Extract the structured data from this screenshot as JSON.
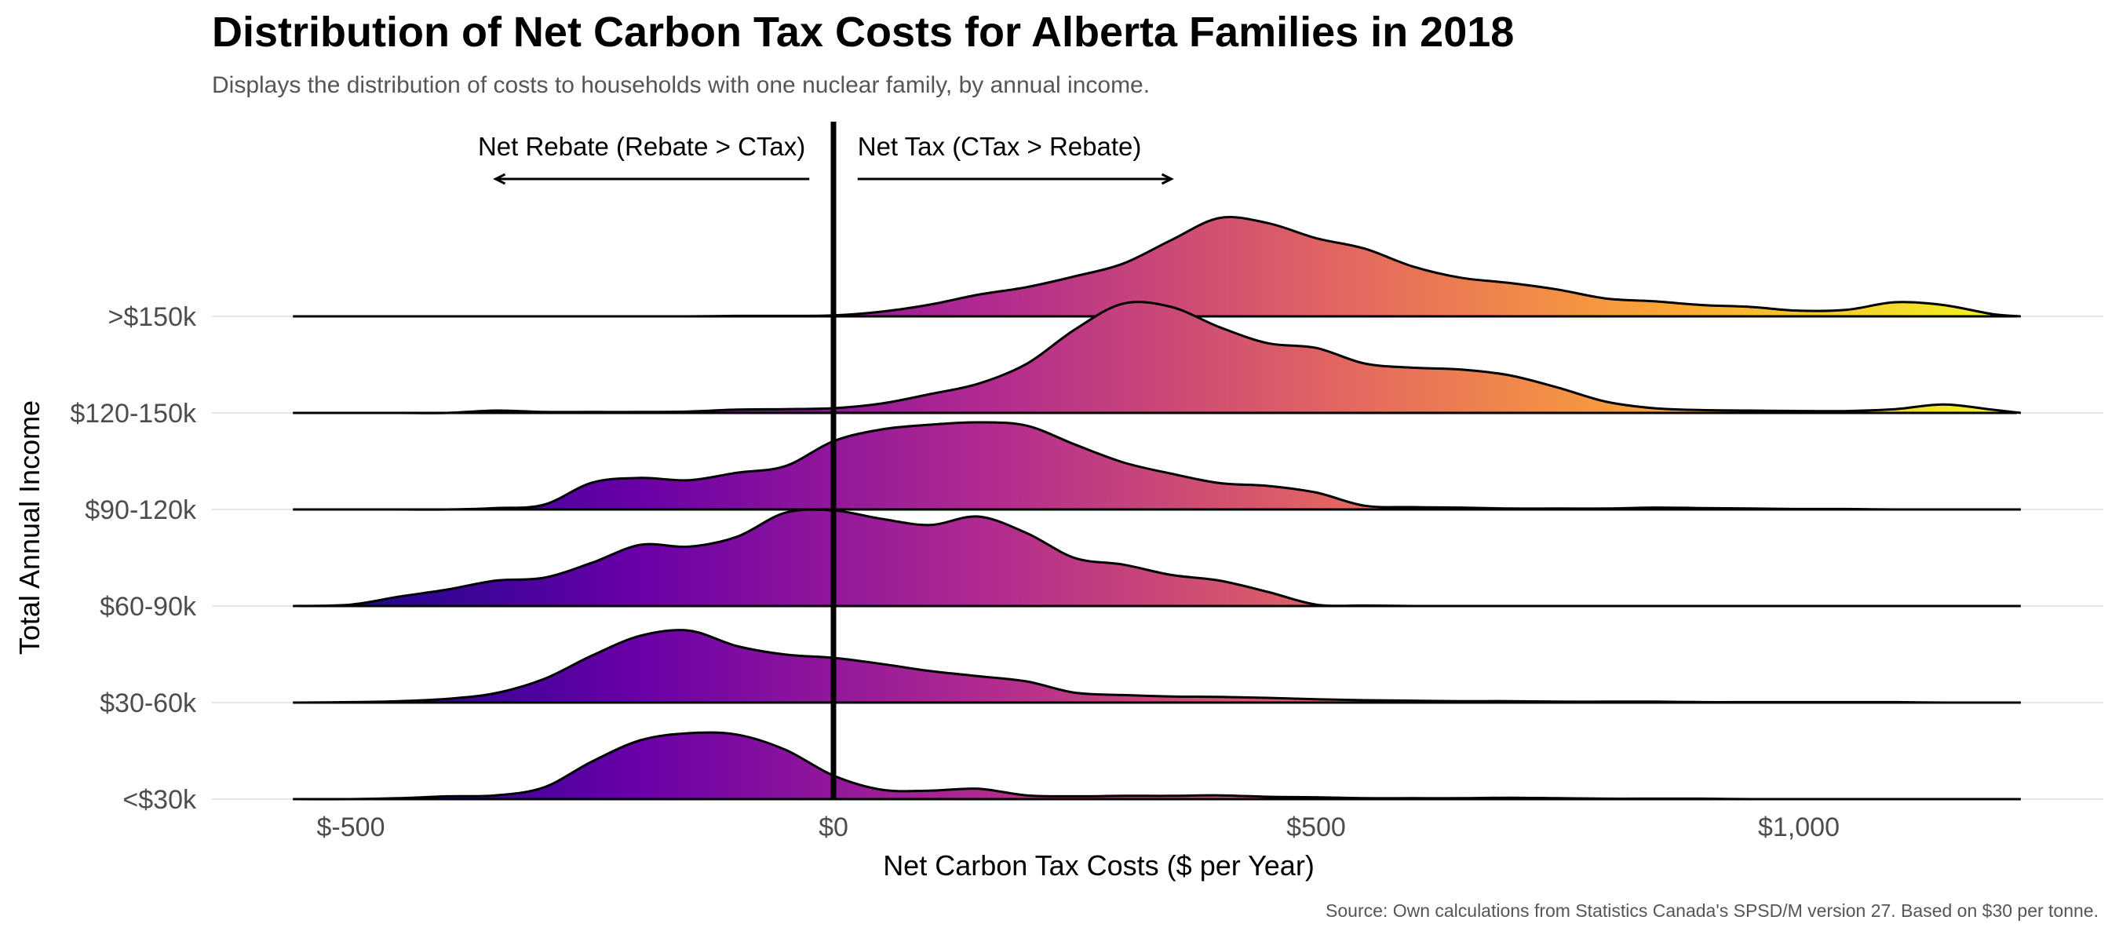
{
  "title": "Distribution of Net Carbon Tax Costs for Alberta Families in 2018",
  "subtitle": "Displays the distribution of costs to households with one nuclear family, by annual income.",
  "caption": "Source: Own calculations from Statistics Canada's SPSD/M version 27. Based on $30 per tonne.",
  "chart_data": {
    "type": "ridgeline",
    "xlabel": "Net Carbon Tax Costs ($ per Year)",
    "ylabel": "Total Annual Income",
    "xlim": [
      -590,
      1265
    ],
    "x_ticks": [
      {
        "value": -500,
        "label": "$-500"
      },
      {
        "value": 0,
        "label": "$0"
      },
      {
        "value": 500,
        "label": "$500"
      },
      {
        "value": 1000,
        "label": "$1,000"
      }
    ],
    "reference_line": 0,
    "annotations": [
      {
        "text": "Net Rebate (Rebate > CTax)",
        "direction": "left",
        "arrow_from": -25,
        "arrow_to": -350
      },
      {
        "text": "Net Tax (CTax > Rebate)",
        "direction": "right",
        "arrow_from": 25,
        "arrow_to": 350
      }
    ],
    "color_scale": {
      "name": "plasma",
      "domain": [
        -560,
        1230
      ],
      "stops": [
        "#0d0887",
        "#6a00a8",
        "#b12a90",
        "#e16462",
        "#fca636",
        "#f0f921"
      ]
    },
    "grid": true,
    "legend": "none",
    "density_x": [
      -560,
      -500,
      -450,
      -400,
      -350,
      -300,
      -250,
      -200,
      -150,
      -100,
      -50,
      0,
      50,
      100,
      150,
      200,
      250,
      300,
      350,
      400,
      450,
      500,
      550,
      600,
      650,
      700,
      750,
      800,
      850,
      900,
      950,
      1000,
      1050,
      1100,
      1150,
      1200,
      1230
    ],
    "series": [
      {
        "name": "<$30k",
        "density": [
          0,
          0,
          0.02,
          0.06,
          0.08,
          0.25,
          0.8,
          1.25,
          1.4,
          1.37,
          1.05,
          0.5,
          0.2,
          0.18,
          0.22,
          0.08,
          0.06,
          0.07,
          0.07,
          0.08,
          0.05,
          0.04,
          0.02,
          0.02,
          0.02,
          0.03,
          0.02,
          0.01,
          0.01,
          0.01,
          0,
          0,
          0,
          0,
          0,
          0,
          0
        ]
      },
      {
        "name": "$30-60k",
        "density": [
          0,
          0.01,
          0.03,
          0.08,
          0.2,
          0.5,
          1.0,
          1.42,
          1.53,
          1.2,
          1.02,
          0.95,
          0.82,
          0.67,
          0.56,
          0.45,
          0.21,
          0.16,
          0.13,
          0.12,
          0.1,
          0.07,
          0.05,
          0.04,
          0.03,
          0.03,
          0.02,
          0.02,
          0.02,
          0.01,
          0.01,
          0.01,
          0.01,
          0.01,
          0,
          0,
          0
        ]
      },
      {
        "name": "$60-90k",
        "density": [
          0,
          0.03,
          0.2,
          0.35,
          0.54,
          0.6,
          0.92,
          1.3,
          1.26,
          1.47,
          1.98,
          2.03,
          1.85,
          1.72,
          1.9,
          1.55,
          1.02,
          0.88,
          0.66,
          0.54,
          0.3,
          0.03,
          0.01,
          0,
          0,
          0,
          0,
          0,
          0,
          0,
          0,
          0,
          0,
          0,
          0,
          0,
          0
        ]
      },
      {
        "name": "$90-120k",
        "density": [
          0,
          0,
          0,
          0,
          0.03,
          0.1,
          0.57,
          0.67,
          0.62,
          0.78,
          0.92,
          1.45,
          1.7,
          1.8,
          1.85,
          1.78,
          1.38,
          1.0,
          0.76,
          0.56,
          0.5,
          0.36,
          0.08,
          0.05,
          0.04,
          0.02,
          0.02,
          0.02,
          0.04,
          0.03,
          0.02,
          0.01,
          0.01,
          0,
          0,
          0,
          0
        ]
      },
      {
        "name": "$120-150k",
        "density": [
          0,
          0,
          0,
          0,
          0.05,
          0.02,
          0.02,
          0.02,
          0.03,
          0.07,
          0.08,
          0.1,
          0.2,
          0.4,
          0.62,
          1.04,
          1.77,
          2.32,
          2.25,
          1.82,
          1.48,
          1.38,
          1.05,
          0.96,
          0.92,
          0.8,
          0.54,
          0.24,
          0.1,
          0.06,
          0.05,
          0.04,
          0.04,
          0.08,
          0.18,
          0.07,
          0
        ]
      },
      {
        "name": ">$150k",
        "density": [
          0,
          0,
          0,
          0,
          0,
          0,
          0,
          0,
          0,
          0.01,
          0.01,
          0.02,
          0.1,
          0.25,
          0.46,
          0.62,
          0.85,
          1.12,
          1.62,
          2.09,
          1.98,
          1.66,
          1.44,
          1.06,
          0.82,
          0.71,
          0.57,
          0.38,
          0.32,
          0.24,
          0.2,
          0.12,
          0.14,
          0.3,
          0.24,
          0.05,
          0
        ]
      }
    ]
  }
}
